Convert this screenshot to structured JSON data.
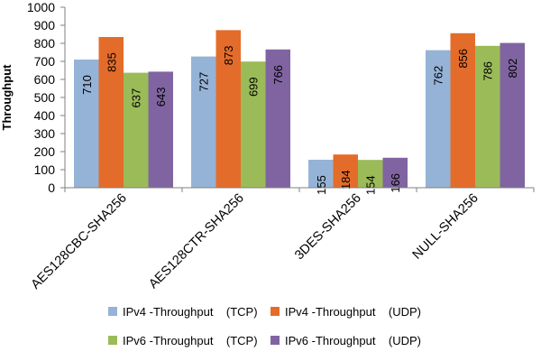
{
  "chart_data": {
    "type": "bar",
    "title": "",
    "xlabel": "",
    "ylabel": "Throughput",
    "ylim": [
      0,
      1000
    ],
    "yticks": [
      0,
      100,
      200,
      300,
      400,
      500,
      600,
      700,
      800,
      900,
      1000
    ],
    "grid": false,
    "legend_position": "bottom",
    "categories": [
      "AES128CBC-SHA256",
      "AES128CTR-SHA256",
      "3DES-SHA256",
      "NULL-SHA256"
    ],
    "series": [
      {
        "name": "IPv4 -Throughput    (TCP)",
        "color": "#95b3d7",
        "values": [
          710,
          727,
          155,
          762
        ]
      },
      {
        "name": "IPv4 -Throughput    (UDP)",
        "color": "#e46c2a",
        "values": [
          835,
          873,
          184,
          856
        ]
      },
      {
        "name": "IPv6 -Throughput    (TCP)",
        "color": "#9bbb59",
        "values": [
          637,
          699,
          154,
          786
        ]
      },
      {
        "name": "IPv6 -Throughput    (UDP)",
        "color": "#8064a2",
        "values": [
          643,
          766,
          166,
          802
        ]
      }
    ]
  }
}
